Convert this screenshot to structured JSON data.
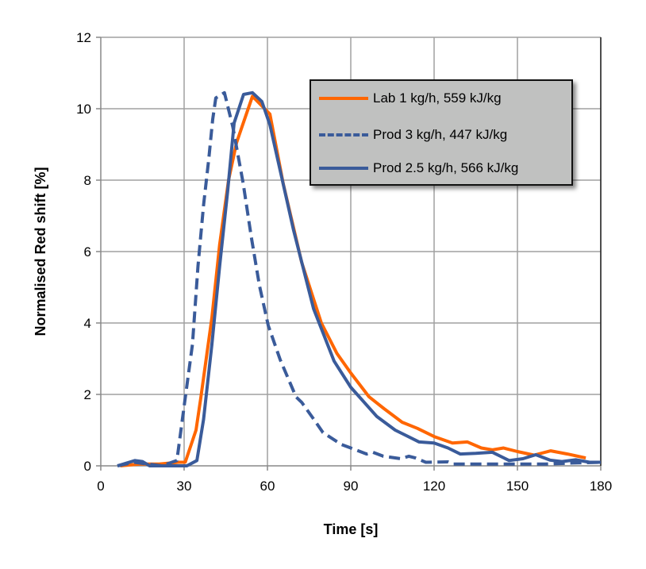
{
  "chart_data": {
    "type": "line",
    "title": "",
    "xlabel": "Time [s]",
    "ylabel": "Normalised Red shift [%]",
    "xlim": [
      0,
      180
    ],
    "ylim": [
      0,
      12
    ],
    "xticks": [
      "0",
      "30",
      "60",
      "90",
      "120",
      "150",
      "180"
    ],
    "yticks": [
      "0",
      "2",
      "4",
      "6",
      "8",
      "10",
      "12"
    ],
    "grid": true,
    "legend_position": "top-right",
    "series": [
      {
        "name": "Lab 1 kg/h, 559 kJ/kg",
        "color": "#ff6600",
        "dash": "solid",
        "x": [
          7,
          14,
          21,
          28,
          30.4,
          34.3,
          36,
          40,
          42.8,
          46,
          48.9,
          54.6,
          60.9,
          65.7,
          72.3,
          79.4,
          85,
          90,
          96.6,
          102,
          108.5,
          114,
          120,
          126.6,
          132,
          137,
          141,
          145,
          150,
          156,
          162,
          168,
          174.6
        ],
        "y": [
          0,
          0.05,
          0.05,
          0.1,
          0.1,
          1.0,
          1.9,
          4.15,
          6.2,
          8.0,
          9.05,
          10.35,
          9.85,
          7.9,
          5.7,
          4.0,
          3.15,
          2.6,
          1.93,
          1.6,
          1.22,
          1.05,
          0.82,
          0.64,
          0.67,
          0.5,
          0.45,
          0.5,
          0.4,
          0.3,
          0.42,
          0.33,
          0.22
        ]
      },
      {
        "name": "Prod 3 kg/h, 447 kJ/kg",
        "color": "#3a5b9a",
        "dash": "dashed",
        "x": [
          6,
          12,
          17,
          22,
          27.4,
          30.4,
          33,
          35,
          37,
          38.9,
          40.3,
          41.4,
          44.5,
          47.5,
          51.3,
          54.2,
          57.1,
          60.3,
          64.6,
          70.3,
          72.3,
          77,
          80,
          86.6,
          95.7,
          98,
          101.7,
          108,
          110.9,
          113.3,
          117,
          125,
          127,
          140,
          150,
          160,
          170,
          180
        ],
        "y": [
          0,
          0.1,
          0.05,
          0,
          0.15,
          1.9,
          3.4,
          5.6,
          7.3,
          8.6,
          9.7,
          10.3,
          10.45,
          9.5,
          7.9,
          6.4,
          5.05,
          3.93,
          2.97,
          1.93,
          1.78,
          1.27,
          0.93,
          0.6,
          0.33,
          0.38,
          0.27,
          0.2,
          0.27,
          0.22,
          0.1,
          0.11,
          0.05,
          0.05,
          0.05,
          0.05,
          0.08,
          0.1
        ]
      },
      {
        "name": "Prod 2.5 kg/h, 566 kJ/kg",
        "color": "#3a5b9a",
        "dash": "solid",
        "x": [
          6,
          12.3,
          15,
          17.6,
          31,
          34.6,
          37,
          40,
          42.8,
          45.7,
          48,
          51.4,
          54.6,
          58,
          60.9,
          69.4,
          76.6,
          84,
          90,
          99.4,
          106,
          114.6,
          120,
          125,
          129.4,
          135,
          141,
          147,
          152,
          156.6,
          161.7,
          166,
          171,
          176,
          180
        ],
        "y": [
          0,
          0.15,
          0.12,
          0,
          0,
          0.15,
          1.3,
          3.4,
          5.6,
          7.7,
          9.6,
          10.4,
          10.45,
          10.2,
          9.55,
          6.6,
          4.4,
          2.93,
          2.2,
          1.38,
          1.0,
          0.67,
          0.64,
          0.5,
          0.33,
          0.35,
          0.38,
          0.15,
          0.2,
          0.31,
          0.16,
          0.12,
          0.17,
          0.1,
          0.1
        ]
      }
    ]
  }
}
